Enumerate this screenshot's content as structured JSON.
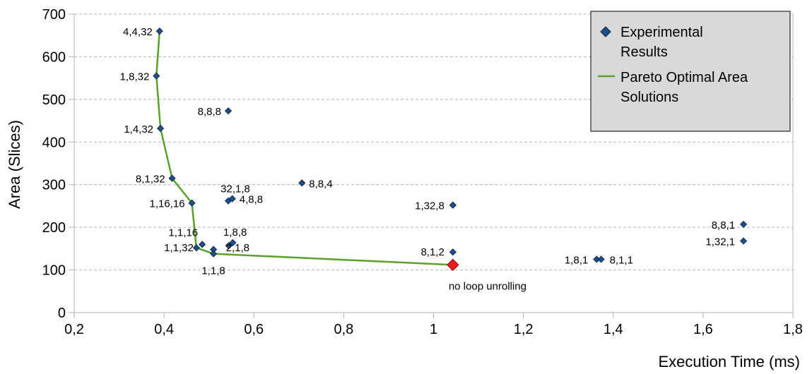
{
  "chart_data": {
    "type": "scatter",
    "title": "",
    "xlabel": "Execution Time (ms)",
    "ylabel": "Area (Slices)",
    "xlim": [
      0.2,
      1.8
    ],
    "ylim": [
      0,
      700
    ],
    "xticks": [
      0.2,
      0.4,
      0.6,
      0.8,
      1.0,
      1.2,
      1.4,
      1.6,
      1.8
    ],
    "xtick_labels": [
      "0,2",
      "0,4",
      "0,6",
      "0,8",
      "1",
      "1,2",
      "1,4",
      "1,6",
      "1,8"
    ],
    "yticks": [
      0,
      100,
      200,
      300,
      400,
      500,
      600,
      700
    ],
    "ytick_labels": [
      "0",
      "100",
      "200",
      "300",
      "400",
      "500",
      "600",
      "700"
    ],
    "grid": "horizontal-dashed",
    "legend_position": "top-right",
    "colors": {
      "marker_fill": "#1f4e8c",
      "marker_stroke": "#0a1f3d",
      "pareto_line": "#5aa02c",
      "highlight": "#ee1c1c",
      "legend_bg": "#d9d9d9"
    },
    "series": [
      {
        "name": "Experimental Results",
        "points": [
          {
            "label": "4,4,32",
            "x": 0.39,
            "y": 660
          },
          {
            "label": "1,8,32",
            "x": 0.383,
            "y": 555
          },
          {
            "label": "8,8,8",
            "x": 0.543,
            "y": 473
          },
          {
            "label": "1,4,32",
            "x": 0.392,
            "y": 432
          },
          {
            "label": "8,1,32",
            "x": 0.418,
            "y": 315
          },
          {
            "label": "8,8,4",
            "x": 0.707,
            "y": 304
          },
          {
            "label": "32,1,8",
            "x": 0.543,
            "y": 262
          },
          {
            "label": "4,8,8",
            "x": 0.552,
            "y": 267
          },
          {
            "label": "1,16,16",
            "x": 0.462,
            "y": 257
          },
          {
            "label": "1,32,8",
            "x": 1.043,
            "y": 252
          },
          {
            "label": "8,8,1",
            "x": 1.69,
            "y": 207
          },
          {
            "label": "1,32,1",
            "x": 1.69,
            "y": 168
          },
          {
            "label": "1,1,16",
            "x": 0.485,
            "y": 160
          },
          {
            "label": "1,8,8",
            "x": 0.553,
            "y": 164
          },
          {
            "label": "2,1,8",
            "x": 0.544,
            "y": 157
          },
          {
            "label": "1,1,32",
            "x": 0.472,
            "y": 152
          },
          {
            "label": "",
            "x": 0.51,
            "y": 148
          },
          {
            "label": "1,1,8",
            "x": 0.51,
            "y": 138
          },
          {
            "label": "8,1,2",
            "x": 1.043,
            "y": 142
          },
          {
            "label": "1,8,1",
            "x": 1.363,
            "y": 125
          },
          {
            "label": "8,1,1",
            "x": 1.373,
            "y": 125
          }
        ]
      },
      {
        "name": "Pareto Optimal Area Solutions",
        "type": "line",
        "points": [
          {
            "x": 0.39,
            "y": 660
          },
          {
            "x": 0.383,
            "y": 555
          },
          {
            "x": 0.392,
            "y": 432
          },
          {
            "x": 0.418,
            "y": 315
          },
          {
            "x": 0.462,
            "y": 257
          },
          {
            "x": 0.472,
            "y": 152
          },
          {
            "x": 0.51,
            "y": 138
          },
          {
            "x": 1.043,
            "y": 112
          }
        ]
      }
    ],
    "highlight": {
      "x": 1.043,
      "y": 112,
      "annotation": "no loop unrolling"
    }
  }
}
